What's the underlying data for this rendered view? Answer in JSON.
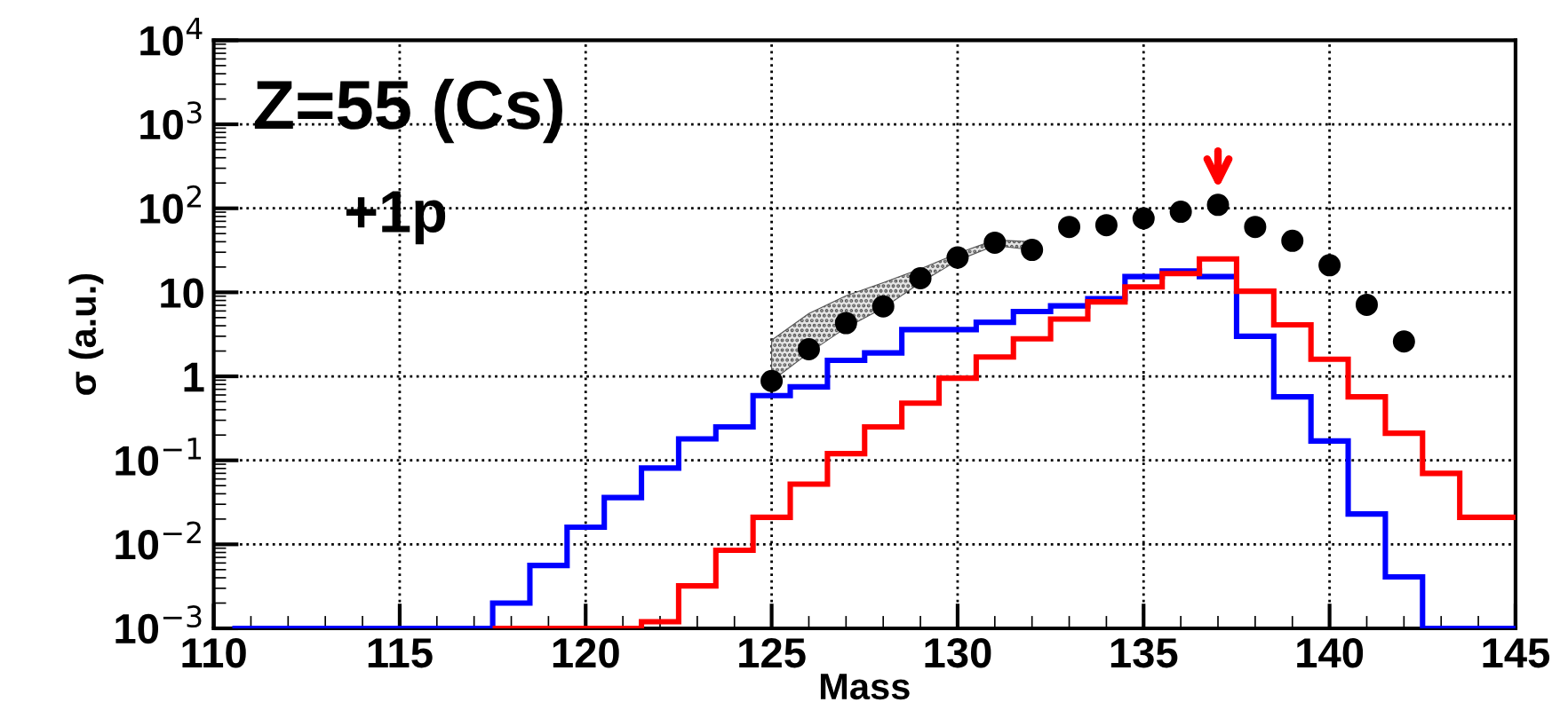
{
  "chart_data": {
    "type": "histogram",
    "xlabel": "Mass",
    "ylabel": "σ (a.u.)",
    "xlim": [
      110,
      145
    ],
    "xticks": [
      110,
      115,
      120,
      125,
      130,
      135,
      140,
      145
    ],
    "ylim": [
      0.001,
      10000
    ],
    "log": "y",
    "yticks": [
      {
        "value": 0.001,
        "label": "10$^{−3}$"
      },
      {
        "value": 0.01,
        "label": "10$^{−2}$"
      },
      {
        "value": 0.1,
        "label": "10$^{−1}$"
      },
      1,
      10,
      {
        "value": 100,
        "label": "10$^{2}$"
      },
      {
        "value": 1000,
        "label": "10$^{3}$"
      },
      {
        "value": 10000,
        "label": "10$^{4}$"
      }
    ],
    "grid": true,
    "series": [
      {
        "type": "area",
        "color": "#555555",
        "x": [
          125,
          126,
          127,
          128,
          129,
          130,
          131,
          132
        ],
        "values": [
          null,
          null,
          null,
          null,
          null,
          null,
          null,
          null
        ],
        "lower": [
          0.88,
          1.9,
          3.8,
          6.5,
          13,
          24,
          36,
          32
        ],
        "upper": [
          2.7,
          5.6,
          9.1,
          13,
          19,
          29,
          42,
          40
        ]
      },
      {
        "color": "#0000ff",
        "bins": [
          110.5,
          111.5,
          112.5,
          113.5,
          114.5,
          115.5,
          116.5,
          117.5,
          118.5,
          119.5,
          120.5,
          121.5,
          122.5,
          123.5,
          124.5,
          125.5,
          126.5,
          127.5,
          128.5,
          129.5,
          130.5,
          131.5,
          132.5,
          133.5,
          134.5,
          135.5,
          136.5,
          137.5,
          138.5,
          139.5,
          140.5,
          141.5,
          142.5,
          143.5,
          144.5,
          145
        ],
        "values": [
          0.001,
          0.001,
          0.001,
          0.001,
          0.001,
          0.001,
          0.001,
          0.002,
          0.0056,
          0.016,
          0.036,
          0.081,
          0.18,
          0.25,
          0.59,
          0.75,
          1.55,
          1.9,
          3.6,
          3.6,
          4.4,
          5.9,
          6.9,
          8.4,
          15.4,
          17.9,
          15.4,
          3.0,
          0.57,
          0.17,
          0.023,
          0.0041,
          0.001,
          0.001,
          0.001
        ]
      },
      {
        "color": "#ff0000",
        "bins": [
          117.5,
          118.5,
          119.5,
          120.5,
          121.5,
          122.5,
          123.5,
          124.5,
          125.5,
          126.5,
          127.5,
          128.5,
          129.5,
          130.5,
          131.5,
          132.5,
          133.5,
          134.5,
          135.5,
          136.5,
          137.5,
          138.5,
          139.5,
          140.5,
          141.5,
          142.5,
          143.5,
          144.5,
          145
        ],
        "values": [
          0.001,
          0.001,
          0.001,
          0.001,
          0.0012,
          0.0032,
          0.0085,
          0.021,
          0.052,
          0.12,
          0.25,
          0.48,
          0.95,
          1.7,
          2.8,
          4.8,
          7.7,
          11.6,
          16.7,
          25,
          10.3,
          4.1,
          1.6,
          0.57,
          0.21,
          0.07,
          0.021,
          0.021
        ]
      },
      {
        "type": "scatter",
        "color": "#000000",
        "marker": "circle",
        "x": [
          125,
          126,
          127,
          128,
          129,
          130,
          131,
          132,
          133,
          134,
          135,
          136,
          137,
          138,
          139,
          140,
          141,
          142
        ],
        "values": [
          0.88,
          2.1,
          4.3,
          6.8,
          14.7,
          26,
          39,
          32,
          60,
          63,
          76,
          91,
          110,
          60,
          41,
          21,
          7.1,
          2.6
        ]
      }
    ],
    "annotations": [
      "Z=55 (Cs)",
      "+1p"
    ]
  }
}
